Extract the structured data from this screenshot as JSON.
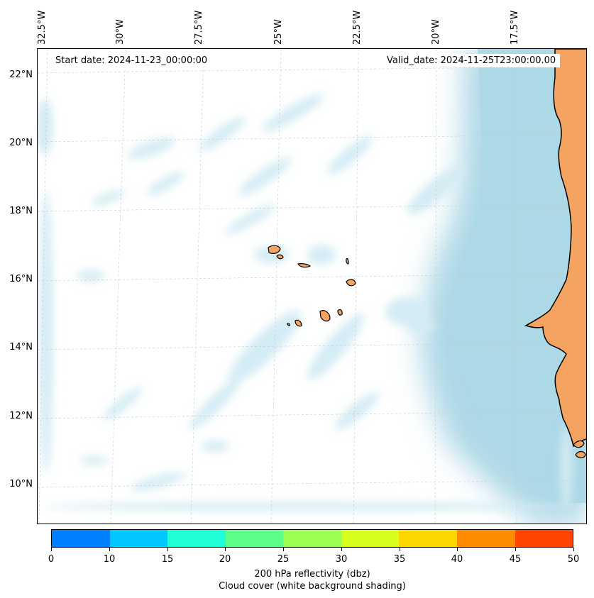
{
  "map": {
    "start_date": "Start date: 2024-11-23_00:00:00",
    "valid_date": "Valid_date: 2024-11-25T23:00:00.00",
    "lon_labels": [
      "32.5°W",
      "30°W",
      "27.5°W",
      "25°W",
      "22.5°W",
      "20°W",
      "17.5°W"
    ],
    "lat_labels": [
      "22°N",
      "20°N",
      "18°N",
      "16°N",
      "14°N",
      "12°N",
      "10°N"
    ],
    "land_color": "#f4a460",
    "ocean_color": "#add8e6",
    "cloud_color": "#d4ecf4"
  },
  "colorbar": {
    "ticks": [
      "0",
      "10",
      "15",
      "20",
      "25",
      "30",
      "35",
      "40",
      "45",
      "50"
    ],
    "colors": [
      "#0080ff",
      "#00c8ff",
      "#1effd7",
      "#5cff8a",
      "#9aff50",
      "#d7ff1e",
      "#ffd700",
      "#ff8c00",
      "#ff4500"
    ],
    "label": "200 hPa reflectivity (dbz)",
    "sublabel": "Cloud cover (white background shading)"
  }
}
